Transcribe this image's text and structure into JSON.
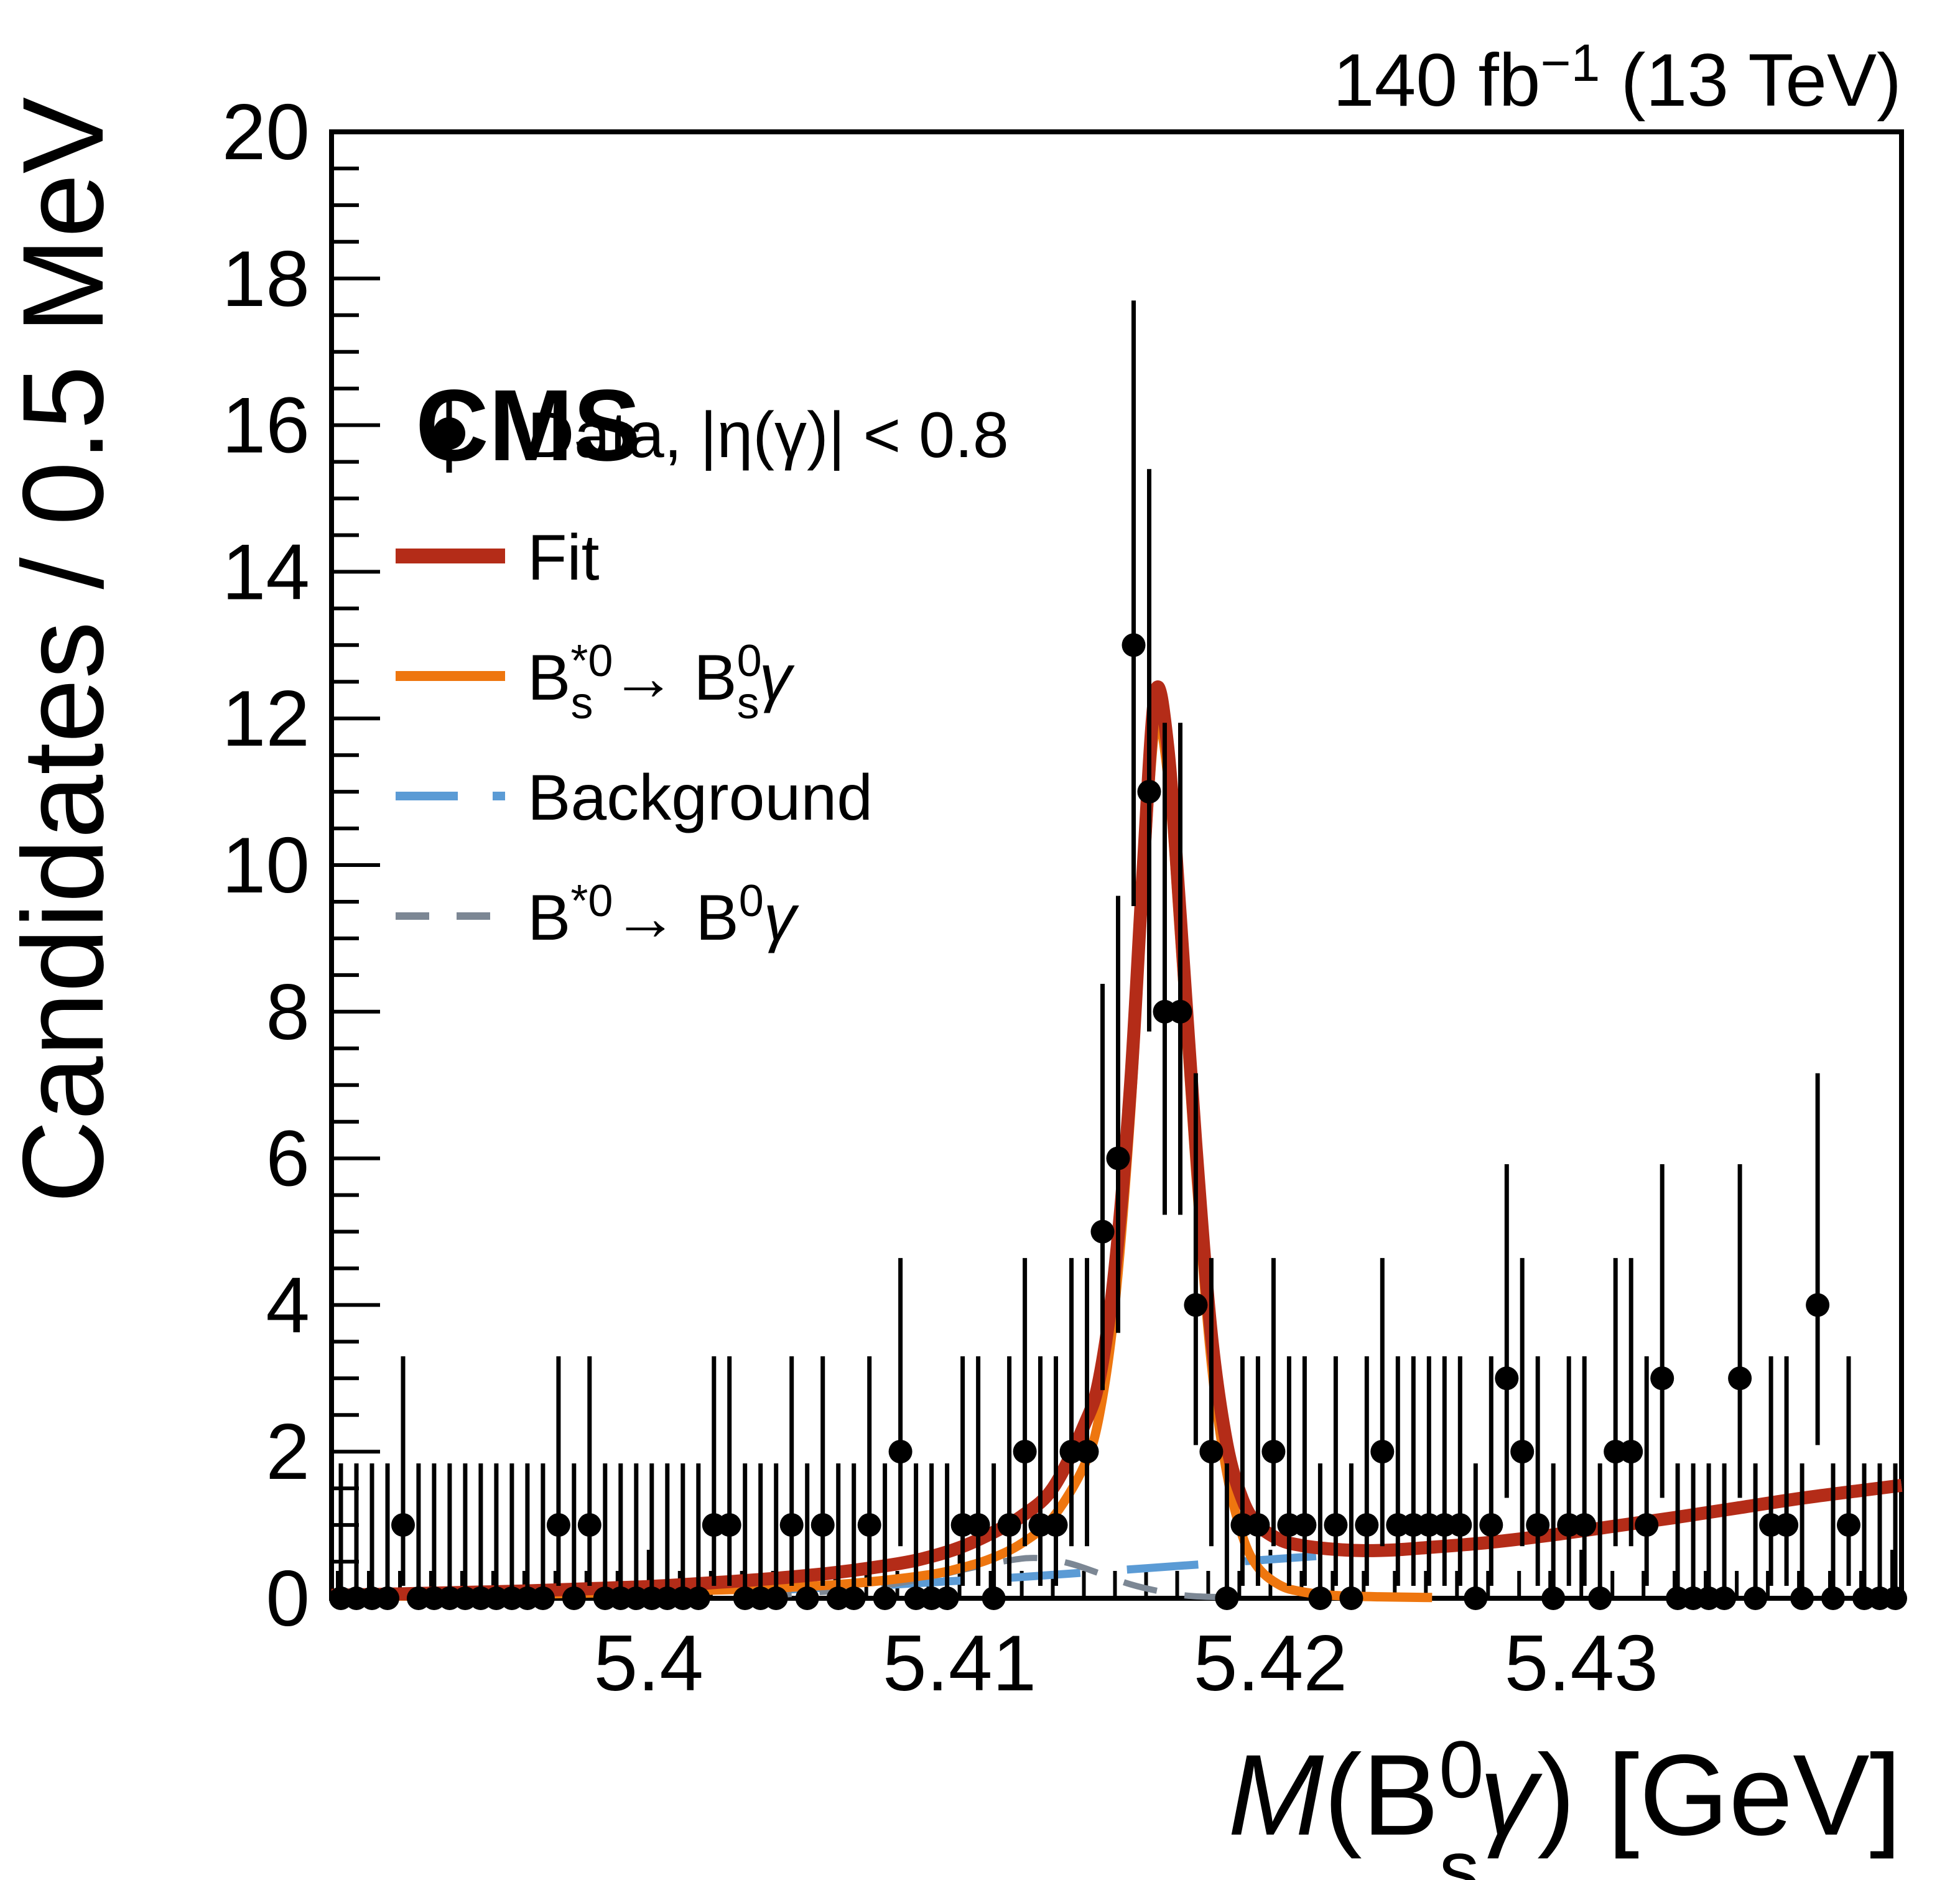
{
  "header": {
    "experiment": "CMS",
    "lumi_prefix": "140 fb",
    "lumi_sup": "−1",
    "lumi_suffix": " (13 TeV)"
  },
  "axes": {
    "y": {
      "title": "Candidates / 0.5 MeV"
    },
    "x": {
      "title_m": "M",
      "title_open": "(B",
      "title_sup": "0",
      "title_sub": "s",
      "title_gamma": "γ",
      "title_tail": ") [GeV]"
    }
  },
  "legend": {
    "data": {
      "label": "Data, |η(γ)| < 0.8"
    },
    "fit": {
      "label": "Fit"
    },
    "bs": {
      "base": "B",
      "sup1": "*0",
      "sub1": "s",
      "mid": " → B",
      "sup2": "0",
      "sub2": "s",
      "tail": "γ"
    },
    "background": {
      "label": "Background"
    },
    "bd": {
      "base": "B",
      "sup1": "*0",
      "mid": "→ B",
      "sup2": "0",
      "tail": "γ"
    }
  },
  "colors": {
    "fit": "#b42c18",
    "signal_bs": "#ee760f",
    "background": "#5b9bd5",
    "signal_bd": "#7c8794",
    "data": "#000000"
  },
  "chart_data": {
    "type": "scatter",
    "title": "CMS",
    "lumi_label": "140 fb−1 (13 TeV)",
    "xlabel": "M(B_s^0 γ) [GeV]",
    "ylabel": "Candidates / 0.5 MeV",
    "xlim": [
      5.3898,
      5.4403
    ],
    "ylim": [
      0,
      20
    ],
    "grid": false,
    "legend_position": "upper-left",
    "bin_width_gev": 0.0005,
    "x_major_ticks": [
      5.4,
      5.41,
      5.42,
      5.43,
      5.44
    ],
    "x_minor_step": 0.001,
    "x_tick_labels": [
      {
        "value": 5.4,
        "label": "5.4"
      },
      {
        "value": 5.41,
        "label": "5.41"
      },
      {
        "value": 5.42,
        "label": "5.42"
      },
      {
        "value": 5.43,
        "label": "5.43"
      }
    ],
    "y_major_step": 2,
    "y_minor_step": 0.5,
    "y_tick_labels": [
      "0",
      "2",
      "4",
      "6",
      "8",
      "10",
      "12",
      "14",
      "16",
      "18",
      "20"
    ],
    "data_series": {
      "name": "Data, |η(γ)| < 0.8",
      "first_bin_center": 5.3901,
      "bin_step": 0.0005,
      "counts": [
        0,
        0,
        0,
        0,
        1,
        0,
        0,
        0,
        0,
        0,
        0,
        0,
        0,
        0,
        1,
        0,
        1,
        0,
        0,
        0,
        0,
        0,
        0,
        0,
        1,
        1,
        0,
        0,
        0,
        1,
        0,
        1,
        0,
        0,
        1,
        0,
        2,
        0,
        0,
        0,
        1,
        1,
        0,
        1,
        2,
        1,
        1,
        2,
        2,
        5,
        6,
        13,
        11,
        8,
        8,
        4,
        2,
        0,
        1,
        1,
        2,
        1,
        1,
        0,
        1,
        0,
        1,
        2,
        1,
        1,
        1,
        1,
        1,
        0,
        1,
        3,
        2,
        1,
        0,
        1,
        1,
        0,
        2,
        2,
        1,
        3,
        0,
        0,
        0,
        0,
        3,
        0,
        1,
        1,
        0,
        4,
        0,
        1,
        0,
        0,
        0
      ]
    },
    "poisson_intervals": {
      "0": [
        0,
        1.84
      ],
      "1": [
        0.17,
        3.3
      ],
      "2": [
        0.71,
        4.64
      ],
      "3": [
        1.37,
        5.92
      ],
      "4": [
        2.09,
        7.16
      ],
      "5": [
        2.84,
        8.38
      ],
      "6": [
        3.62,
        9.58
      ],
      "7": [
        4.42,
        10.77
      ],
      "8": [
        5.23,
        11.94
      ],
      "9": [
        6.06,
        13.11
      ],
      "10": [
        6.89,
        14.26
      ],
      "11": [
        7.73,
        15.4
      ],
      "12": [
        8.58,
        16.55
      ],
      "13": [
        9.44,
        17.7
      ]
    },
    "curves": [
      {
        "id": "background-curve",
        "name": "Background",
        "color": "#5b9bd5",
        "style": "dashed",
        "dash": [
          115,
          75
        ],
        "width": 13,
        "points": [
          [
            5.404,
            0.11
          ],
          [
            5.406,
            0.15
          ],
          [
            5.408,
            0.19
          ],
          [
            5.41,
            0.24
          ],
          [
            5.412,
            0.29
          ],
          [
            5.414,
            0.35
          ],
          [
            5.416,
            0.41
          ],
          [
            5.418,
            0.47
          ],
          [
            5.42,
            0.53
          ],
          [
            5.422,
            0.59
          ],
          [
            5.424,
            0.65
          ],
          [
            5.426,
            0.72
          ],
          [
            5.428,
            0.8
          ],
          [
            5.43,
            0.9
          ],
          [
            5.432,
            1.02
          ],
          [
            5.434,
            1.15
          ],
          [
            5.436,
            1.29
          ],
          [
            5.438,
            1.42
          ],
          [
            5.4403,
            1.54
          ]
        ]
      },
      {
        "id": "bd-signal-curve",
        "name": "B*0 → B0 γ",
        "color": "#7c8794",
        "style": "dashed",
        "dash": [
          55,
          45
        ],
        "width": 10,
        "points": [
          [
            5.4035,
            0.03
          ],
          [
            5.405,
            0.07
          ],
          [
            5.407,
            0.14
          ],
          [
            5.409,
            0.28
          ],
          [
            5.41,
            0.38
          ],
          [
            5.4115,
            0.51
          ],
          [
            5.4125,
            0.55
          ],
          [
            5.4135,
            0.48
          ],
          [
            5.4145,
            0.34
          ],
          [
            5.4155,
            0.19
          ],
          [
            5.4165,
            0.09
          ],
          [
            5.4175,
            0.03
          ],
          [
            5.419,
            0.01
          ]
        ]
      },
      {
        "id": "bs-signal-curve",
        "name": "B*0_s → B0_s γ",
        "color": "#ee760f",
        "style": "solid",
        "width": 15,
        "points": [
          [
            5.3898,
            0.02
          ],
          [
            5.394,
            0.04
          ],
          [
            5.398,
            0.07
          ],
          [
            5.402,
            0.11
          ],
          [
            5.405,
            0.16
          ],
          [
            5.407,
            0.22
          ],
          [
            5.409,
            0.32
          ],
          [
            5.41,
            0.41
          ],
          [
            5.411,
            0.54
          ],
          [
            5.412,
            0.75
          ],
          [
            5.413,
            1.1
          ],
          [
            5.414,
            1.8
          ],
          [
            5.4145,
            2.5
          ],
          [
            5.415,
            4.0
          ],
          [
            5.4155,
            6.6
          ],
          [
            5.4159,
            9.5
          ],
          [
            5.4163,
            11.9
          ],
          [
            5.4167,
            11.2
          ],
          [
            5.4171,
            8.9
          ],
          [
            5.4176,
            5.8
          ],
          [
            5.4181,
            3.2
          ],
          [
            5.4186,
            1.7
          ],
          [
            5.4191,
            0.85
          ],
          [
            5.4196,
            0.42
          ],
          [
            5.4203,
            0.18
          ],
          [
            5.421,
            0.09
          ],
          [
            5.422,
            0.04
          ],
          [
            5.4235,
            0.02
          ],
          [
            5.4252,
            0.01
          ]
        ]
      },
      {
        "id": "fit-curve",
        "name": "Fit",
        "color": "#b42c18",
        "style": "solid",
        "width": 21,
        "points": [
          [
            5.3898,
            0.04
          ],
          [
            5.392,
            0.06
          ],
          [
            5.394,
            0.08
          ],
          [
            5.396,
            0.1
          ],
          [
            5.398,
            0.13
          ],
          [
            5.4,
            0.16
          ],
          [
            5.402,
            0.21
          ],
          [
            5.404,
            0.27
          ],
          [
            5.406,
            0.35
          ],
          [
            5.408,
            0.47
          ],
          [
            5.409,
            0.56
          ],
          [
            5.41,
            0.69
          ],
          [
            5.411,
            0.88
          ],
          [
            5.412,
            1.12
          ],
          [
            5.413,
            1.5
          ],
          [
            5.414,
            2.35
          ],
          [
            5.4145,
            3.0
          ],
          [
            5.415,
            4.5
          ],
          [
            5.4155,
            7.0
          ],
          [
            5.4159,
            9.9
          ],
          [
            5.4163,
            12.35
          ],
          [
            5.4167,
            11.6
          ],
          [
            5.4171,
            9.3
          ],
          [
            5.4176,
            6.2
          ],
          [
            5.4181,
            3.6
          ],
          [
            5.4186,
            2.1
          ],
          [
            5.4191,
            1.35
          ],
          [
            5.4196,
            1.0
          ],
          [
            5.4203,
            0.8
          ],
          [
            5.421,
            0.72
          ],
          [
            5.422,
            0.67
          ],
          [
            5.423,
            0.65
          ],
          [
            5.424,
            0.66
          ],
          [
            5.425,
            0.69
          ],
          [
            5.427,
            0.76
          ],
          [
            5.429,
            0.86
          ],
          [
            5.431,
            0.98
          ],
          [
            5.433,
            1.1
          ],
          [
            5.435,
            1.23
          ],
          [
            5.437,
            1.36
          ],
          [
            5.439,
            1.47
          ],
          [
            5.4403,
            1.54
          ]
        ]
      }
    ],
    "marker_radius": 19,
    "peak": {
      "mass_gev": 5.4163,
      "height_fit": 12.35
    }
  }
}
